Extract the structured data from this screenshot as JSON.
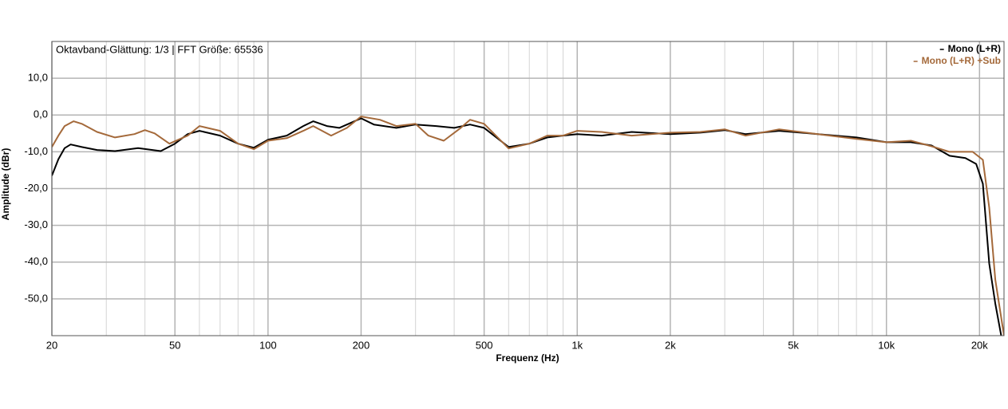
{
  "chart_data": {
    "type": "line",
    "annotation": "Oktavband-Glättung: 1/3 | FFT Größe: 65536",
    "xlabel": "Frequenz (Hz)",
    "ylabel": "Amplitude (dBr)",
    "xscale": "log",
    "grid": true,
    "legend": "top-right",
    "xlim": [
      20,
      24000
    ],
    "ylim": [
      -60,
      20
    ],
    "xticks": [
      20,
      50,
      100,
      200,
      500,
      {
        "value": 1000,
        "label": "1k"
      },
      {
        "value": 2000,
        "label": "2k"
      },
      {
        "value": 5000,
        "label": "5k"
      },
      {
        "value": 10000,
        "label": "10k"
      },
      {
        "value": 20000,
        "label": "20k"
      }
    ],
    "minor_xticks": [
      30,
      40,
      60,
      70,
      80,
      90,
      300,
      400,
      600,
      700,
      800,
      900,
      3000,
      4000,
      6000,
      7000,
      8000,
      9000
    ],
    "yticks": [
      {
        "value": 10,
        "label": "10,0"
      },
      {
        "value": 0,
        "label": "0,0"
      },
      {
        "value": -10,
        "label": "-10,0"
      },
      {
        "value": -20,
        "label": "-20,0"
      },
      {
        "value": -30,
        "label": "-30,0"
      },
      {
        "value": -40,
        "label": "-40,0"
      },
      {
        "value": -50,
        "label": "-50,0"
      }
    ],
    "series": [
      {
        "name": "Mono (L+R)",
        "color": "#000000",
        "x": [
          20,
          21,
          22,
          23,
          25,
          28,
          32,
          38,
          45,
          50,
          55,
          60,
          70,
          80,
          90,
          100,
          115,
          130,
          140,
          155,
          170,
          200,
          220,
          260,
          300,
          350,
          400,
          450,
          500,
          600,
          700,
          800,
          900,
          1000,
          1200,
          1500,
          2000,
          2500,
          3000,
          3500,
          4500,
          6000,
          8000,
          10000,
          12000,
          14000,
          16000,
          18000,
          19500,
          20500,
          21500,
          22500,
          23500
        ],
        "values": [
          -16.5,
          -12,
          -9,
          -8,
          -8.7,
          -9.5,
          -9.8,
          -9,
          -9.8,
          -7.8,
          -5.2,
          -4.3,
          -5.6,
          -7.8,
          -8.9,
          -6.7,
          -5.6,
          -3,
          -1.7,
          -3,
          -3.5,
          -0.9,
          -2.6,
          -3.5,
          -2.6,
          -3,
          -3.5,
          -2.6,
          -3.5,
          -8.7,
          -7.8,
          -6.1,
          -5.6,
          -5.2,
          -5.6,
          -4.6,
          -5.2,
          -4.8,
          -4.1,
          -5.2,
          -4.3,
          -5.2,
          -6.1,
          -7.4,
          -7.4,
          -8.3,
          -11.1,
          -11.7,
          -13.3,
          -18.7,
          -40.4,
          -51.3,
          -60
        ]
      },
      {
        "name": "Mono (L+R) +Sub",
        "color": "#a4693a",
        "x": [
          20,
          21,
          22,
          23.5,
          25,
          28,
          32,
          37,
          40,
          43,
          48,
          55,
          60,
          70,
          80,
          90,
          100,
          115,
          130,
          140,
          160,
          180,
          200,
          230,
          260,
          300,
          330,
          370,
          420,
          450,
          500,
          600,
          700,
          800,
          900,
          1000,
          1200,
          1500,
          2000,
          2500,
          3000,
          3500,
          4500,
          6000,
          8000,
          10000,
          12000,
          14000,
          16000,
          19000,
          20500,
          21500,
          22500,
          24000
        ],
        "values": [
          -8.7,
          -5.6,
          -3,
          -1.7,
          -2.4,
          -4.6,
          -6.1,
          -5.2,
          -4.1,
          -5,
          -7.8,
          -5.6,
          -3,
          -4.3,
          -7.8,
          -9.3,
          -7,
          -6.3,
          -4.3,
          -3,
          -5.6,
          -3.5,
          -0.4,
          -1.3,
          -3,
          -2.4,
          -5.6,
          -7,
          -3.5,
          -1.3,
          -2.4,
          -9.1,
          -7.8,
          -5.6,
          -5.6,
          -4.3,
          -4.6,
          -5.6,
          -4.8,
          -4.6,
          -3.9,
          -5.6,
          -3.9,
          -5.2,
          -6.5,
          -7.4,
          -7,
          -8.5,
          -10,
          -10,
          -12.2,
          -25.2,
          -44.8,
          -60
        ]
      }
    ]
  }
}
